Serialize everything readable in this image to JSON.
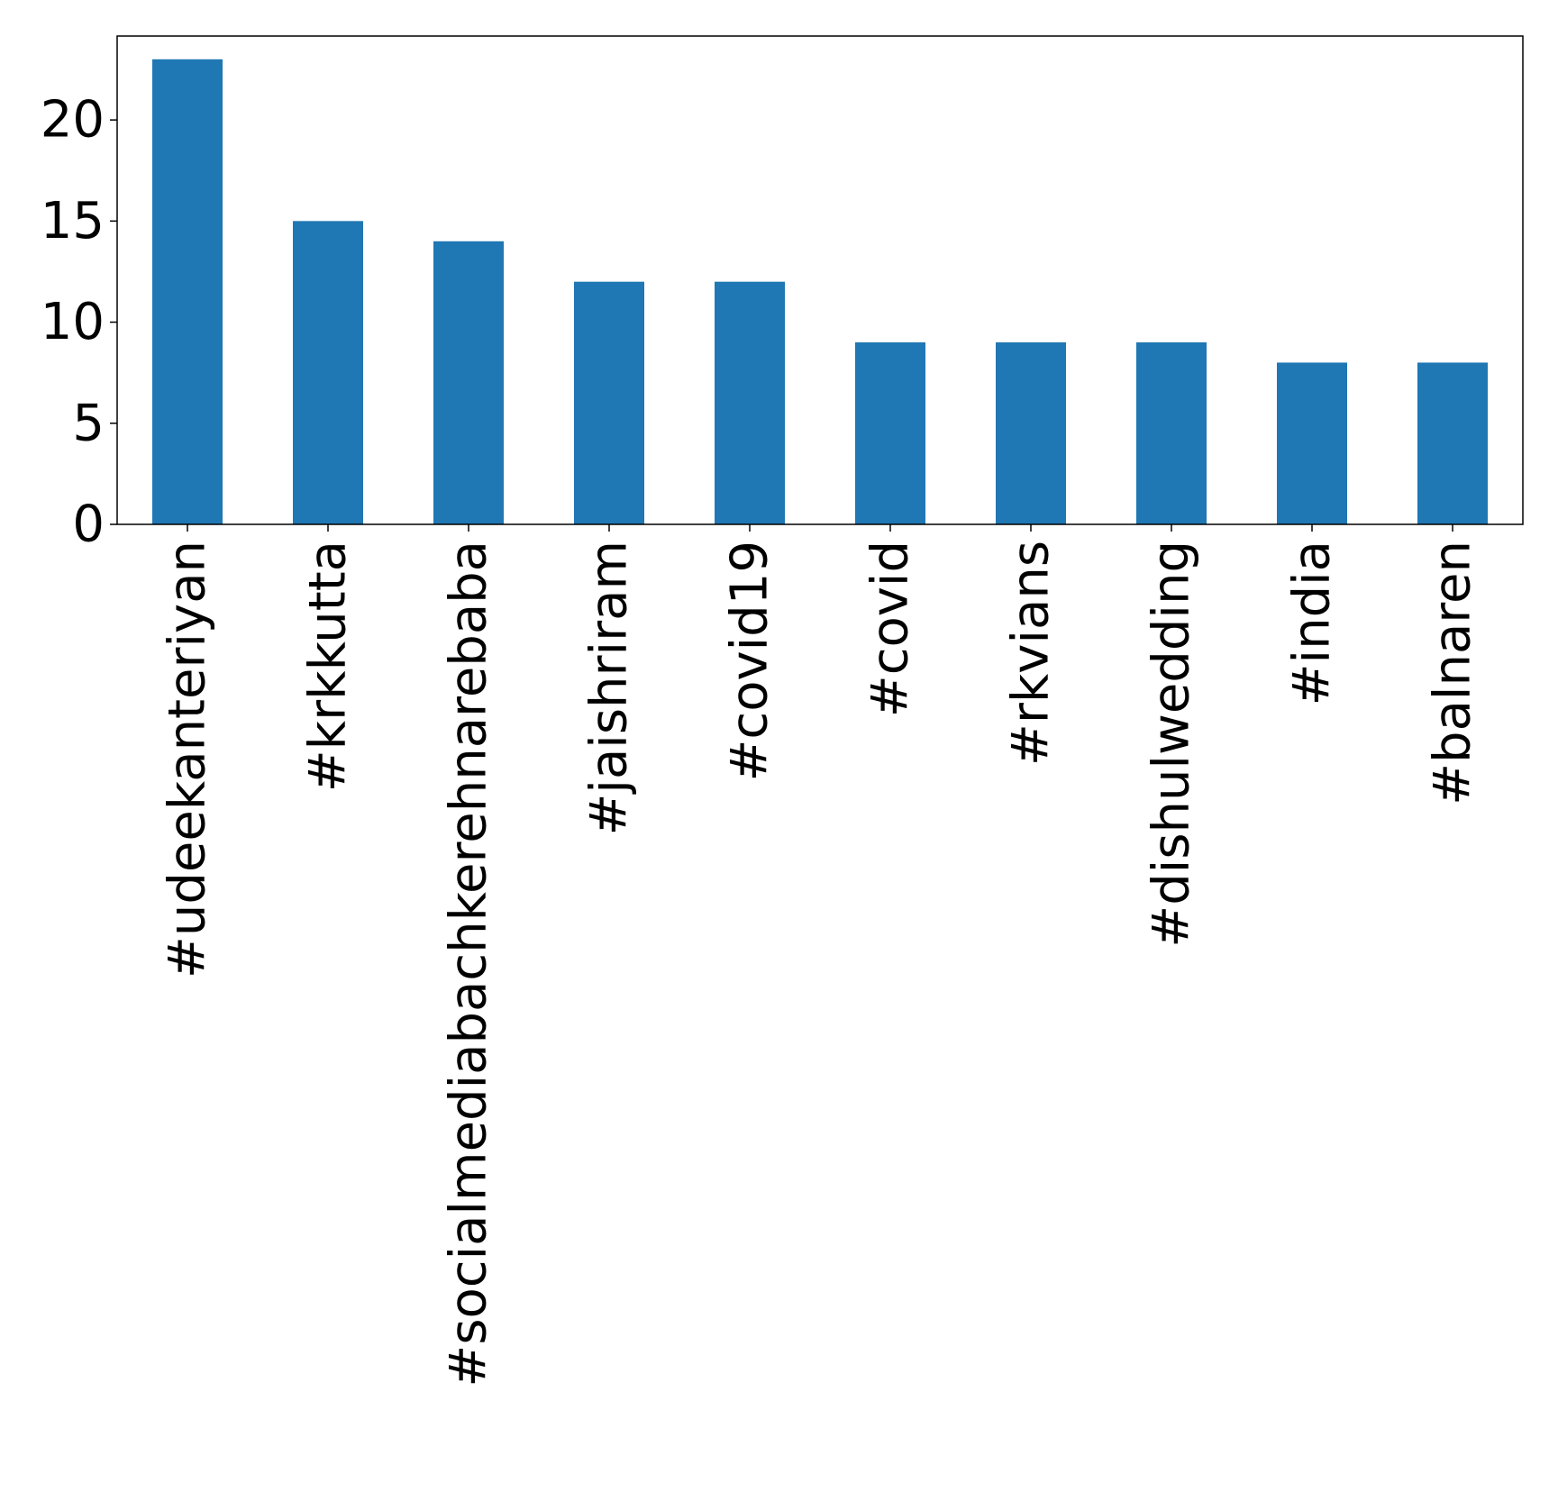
{
  "chart_data": {
    "type": "bar",
    "title": "",
    "xlabel": "",
    "ylabel": "",
    "categories": [
      "#udeekanteriyan",
      "#krkkutta",
      "#socialmediabachkerehnarebaba",
      "#jaishriram",
      "#covid19",
      "#covid",
      "#rkvians",
      "#dishulwedding",
      "#india",
      "#balnaren"
    ],
    "values": [
      23,
      15,
      14,
      12,
      12,
      9,
      9,
      9,
      8,
      8
    ],
    "ylim": [
      0,
      24.15
    ],
    "yticks": [
      0,
      5,
      10,
      15,
      20
    ],
    "grid": false,
    "legend": "none",
    "bar_color": "#1f77b4"
  }
}
